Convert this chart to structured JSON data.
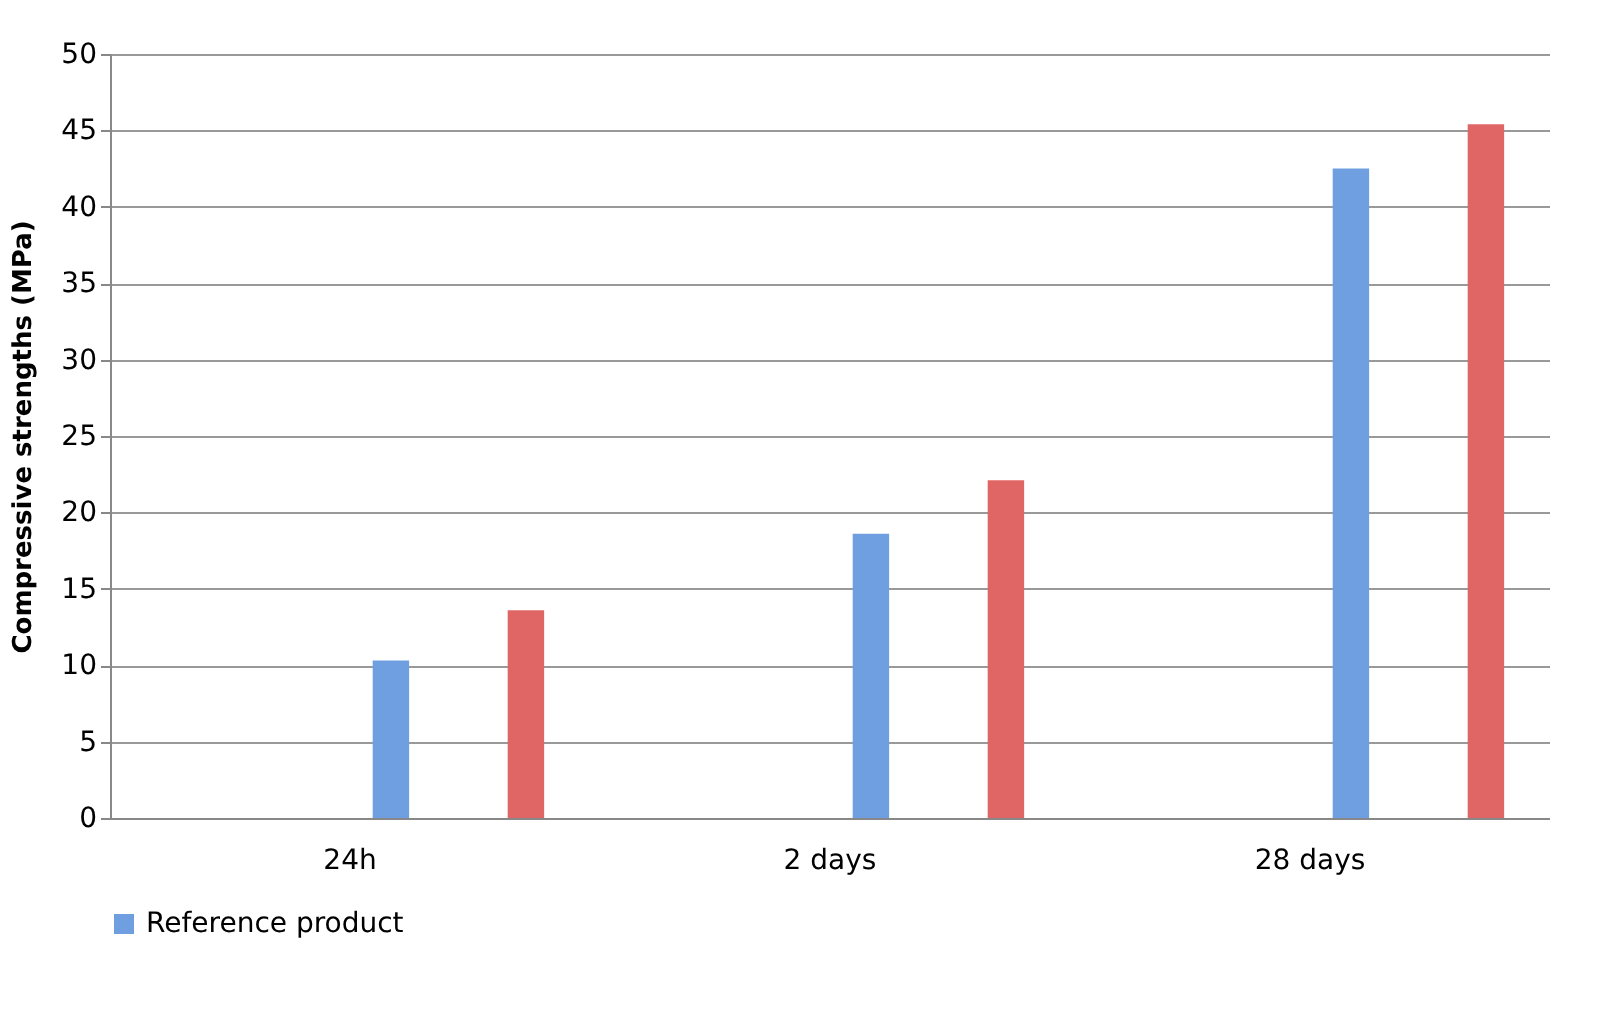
{
  "chart_data": {
    "type": "bar",
    "ylabel": "Compressive strengths (MPa)",
    "categories": [
      "24h",
      "2 days",
      "28 days"
    ],
    "series": [
      {
        "name": "Reference product",
        "color": "#6f9fe0",
        "values": [
          10.3,
          18.6,
          42.5
        ]
      },
      {
        "color": "#e06666",
        "values": [
          13.6,
          22.1,
          45.4
        ]
      }
    ],
    "ylim": [
      0,
      50
    ],
    "yticks": [
      0,
      5,
      10,
      15,
      20,
      25,
      30,
      35,
      40,
      45,
      50
    ],
    "grid": "y",
    "legend": "bottom"
  }
}
